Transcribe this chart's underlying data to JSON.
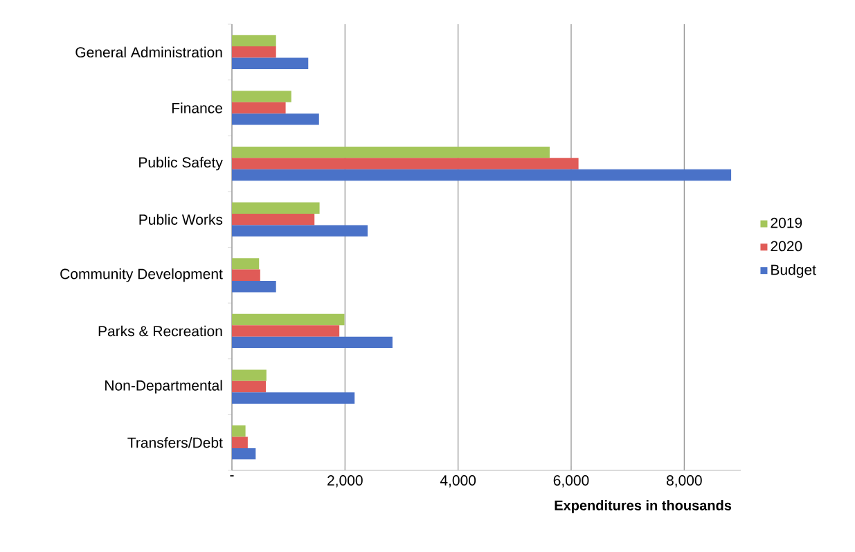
{
  "chart_data": {
    "type": "bar",
    "orientation": "horizontal",
    "xlabel": "Expenditures in thousands",
    "categories": [
      "General Administration",
      "Finance",
      "Public Safety",
      "Public Works",
      "Community Development",
      "Parks & Recreation",
      "Non-Departmental",
      "Transfers/Debt"
    ],
    "series": [
      {
        "name": "2019",
        "color": "#a4c65a",
        "values": [
          780,
          1050,
          5620,
          1550,
          480,
          1990,
          610,
          240
        ]
      },
      {
        "name": "2020",
        "color": "#e05b57",
        "values": [
          780,
          950,
          6130,
          1460,
          500,
          1900,
          600,
          280
        ]
      },
      {
        "name": "Budget",
        "color": "#4a72c8",
        "values": [
          1350,
          1540,
          8830,
          2400,
          780,
          2840,
          2170,
          420
        ]
      }
    ],
    "xlim": [
      0,
      9000
    ],
    "xticks": [
      {
        "value": 0,
        "label": "-"
      },
      {
        "value": 2000,
        "label": "2,000"
      },
      {
        "value": 4000,
        "label": "4,000"
      },
      {
        "value": 6000,
        "label": "6,000"
      },
      {
        "value": 8000,
        "label": "8,000"
      }
    ],
    "grid": "x",
    "legend": "right"
  }
}
